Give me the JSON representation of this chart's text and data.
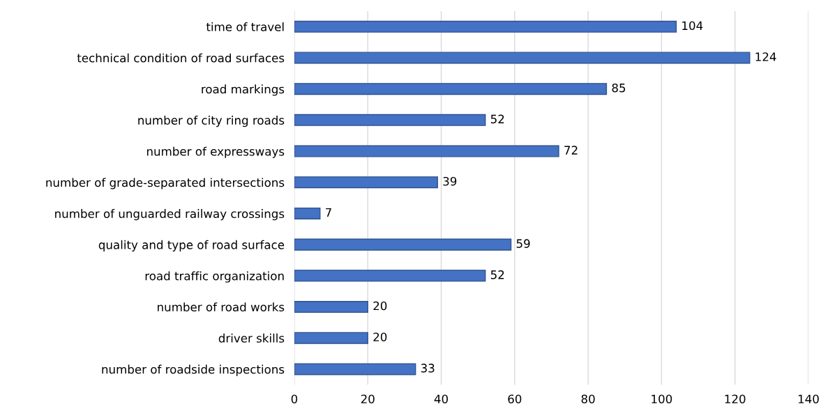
{
  "chart_data": {
    "type": "bar",
    "orientation": "horizontal",
    "categories": [
      "time of travel",
      "technical condition of road surfaces",
      "road markings",
      "number of city ring roads",
      "number of expressways",
      "number of grade-separated intersections",
      "number of unguarded railway crossings",
      "quality and type of road surface",
      "road traffic organization",
      "number of road works",
      "driver skills",
      "number of roadside inspections"
    ],
    "values": [
      104,
      124,
      85,
      52,
      72,
      39,
      7,
      59,
      52,
      20,
      20,
      33
    ],
    "color": "#4472c4",
    "xlim": [
      0,
      140
    ],
    "xticks": [
      0,
      20,
      40,
      60,
      80,
      100,
      120,
      140
    ],
    "grid": "x",
    "data_labels": true
  }
}
